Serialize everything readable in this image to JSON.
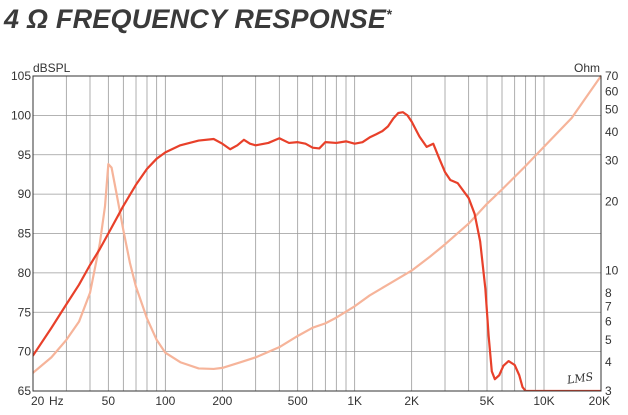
{
  "title": {
    "main": "4 Ω FREQUENCY RESPONSE",
    "mark": "*"
  },
  "watermark": "LMS",
  "colors": {
    "spl": "#e8402a",
    "impedance": "#f6b49a",
    "grid": "#9a9a9a",
    "axis": "#333333"
  },
  "chart_data": {
    "type": "line",
    "ylabel_left": "dBSPL",
    "ylabel_right": "Ohm",
    "x_unit_label": "Hz",
    "xlim": [
      20,
      20000
    ],
    "x_scale": "log",
    "ylim_left": [
      65,
      105
    ],
    "ylim_right": [
      3,
      70
    ],
    "right_scale": "log",
    "grid": true,
    "x_ticks": [
      {
        "value": 20,
        "label": "20"
      },
      {
        "value": 50,
        "label": "50"
      },
      {
        "value": 100,
        "label": "100"
      },
      {
        "value": 200,
        "label": "200"
      },
      {
        "value": 500,
        "label": "500"
      },
      {
        "value": 1000,
        "label": "1K"
      },
      {
        "value": 2000,
        "label": "2K"
      },
      {
        "value": 5000,
        "label": "5K"
      },
      {
        "value": 10000,
        "label": "10K"
      },
      {
        "value": 20000,
        "label": "20K"
      }
    ],
    "y_ticks_left": [
      "65",
      "70",
      "75",
      "80",
      "85",
      "90",
      "95",
      "100",
      "105"
    ],
    "y_ticks_right": [
      {
        "value": 3,
        "label": "3"
      },
      {
        "value": 4,
        "label": "4"
      },
      {
        "value": 5,
        "label": "5"
      },
      {
        "value": 6,
        "label": "6"
      },
      {
        "value": 7,
        "label": "7"
      },
      {
        "value": 8,
        "label": "8"
      },
      {
        "value": 10,
        "label": "10"
      },
      {
        "value": 20,
        "label": "20"
      },
      {
        "value": 30,
        "label": "30"
      },
      {
        "value": 40,
        "label": "40"
      },
      {
        "value": 50,
        "label": "50"
      },
      {
        "value": 60,
        "label": "60"
      },
      {
        "value": 70,
        "label": "70"
      }
    ],
    "series": [
      {
        "axis": "left",
        "points": [
          [
            20,
            69.5
          ],
          [
            25,
            73
          ],
          [
            30,
            76
          ],
          [
            35,
            78.5
          ],
          [
            40,
            81
          ],
          [
            45,
            83
          ],
          [
            50,
            85
          ],
          [
            60,
            88.5
          ],
          [
            70,
            91.2
          ],
          [
            80,
            93.2
          ],
          [
            90,
            94.5
          ],
          [
            100,
            95.3
          ],
          [
            120,
            96.2
          ],
          [
            150,
            96.8
          ],
          [
            180,
            97
          ],
          [
            200,
            96.4
          ],
          [
            220,
            95.7
          ],
          [
            240,
            96.2
          ],
          [
            260,
            96.9
          ],
          [
            280,
            96.4
          ],
          [
            300,
            96.2
          ],
          [
            350,
            96.5
          ],
          [
            400,
            97.1
          ],
          [
            450,
            96.5
          ],
          [
            500,
            96.6
          ],
          [
            550,
            96.4
          ],
          [
            600,
            95.9
          ],
          [
            650,
            95.8
          ],
          [
            700,
            96.6
          ],
          [
            800,
            96.5
          ],
          [
            900,
            96.7
          ],
          [
            1000,
            96.4
          ],
          [
            1100,
            96.6
          ],
          [
            1200,
            97.2
          ],
          [
            1300,
            97.6
          ],
          [
            1400,
            98
          ],
          [
            1500,
            98.6
          ],
          [
            1600,
            99.6
          ],
          [
            1700,
            100.3
          ],
          [
            1800,
            100.4
          ],
          [
            1900,
            100
          ],
          [
            2000,
            99.2
          ],
          [
            2200,
            97.3
          ],
          [
            2400,
            96
          ],
          [
            2600,
            96.4
          ],
          [
            2800,
            94.5
          ],
          [
            3000,
            92.8
          ],
          [
            3200,
            91.8
          ],
          [
            3500,
            91.4
          ],
          [
            4000,
            89.5
          ],
          [
            4300,
            87.5
          ],
          [
            4600,
            84
          ],
          [
            4900,
            78
          ],
          [
            5100,
            72
          ],
          [
            5300,
            67.5
          ],
          [
            5500,
            66.5
          ],
          [
            5800,
            67
          ],
          [
            6100,
            68.2
          ],
          [
            6500,
            68.8
          ],
          [
            7000,
            68.3
          ],
          [
            7400,
            67
          ],
          [
            7700,
            65.5
          ],
          [
            8000,
            65
          ],
          [
            20000,
            65
          ]
        ]
      },
      {
        "axis": "right",
        "points": [
          [
            20,
            3.6
          ],
          [
            25,
            4.2
          ],
          [
            30,
            5.0
          ],
          [
            35,
            6.0
          ],
          [
            40,
            8.0
          ],
          [
            45,
            13
          ],
          [
            48,
            19
          ],
          [
            50,
            29
          ],
          [
            52,
            28
          ],
          [
            55,
            22
          ],
          [
            60,
            15
          ],
          [
            65,
            10.8
          ],
          [
            70,
            8.5
          ],
          [
            80,
            6.2
          ],
          [
            90,
            5.0
          ],
          [
            100,
            4.4
          ],
          [
            120,
            4.0
          ],
          [
            150,
            3.76
          ],
          [
            180,
            3.74
          ],
          [
            200,
            3.78
          ],
          [
            250,
            4.0
          ],
          [
            300,
            4.2
          ],
          [
            400,
            4.65
          ],
          [
            500,
            5.2
          ],
          [
            600,
            5.65
          ],
          [
            700,
            5.9
          ],
          [
            800,
            6.25
          ],
          [
            1000,
            7.0
          ],
          [
            1200,
            7.8
          ],
          [
            1500,
            8.7
          ],
          [
            2000,
            10.0
          ],
          [
            2500,
            11.5
          ],
          [
            3000,
            13.0
          ],
          [
            4000,
            16.0
          ],
          [
            5000,
            19.5
          ],
          [
            6000,
            22.5
          ],
          [
            8000,
            28.5
          ],
          [
            10000,
            34.5
          ],
          [
            14000,
            46
          ],
          [
            20000,
            70
          ]
        ]
      }
    ]
  }
}
